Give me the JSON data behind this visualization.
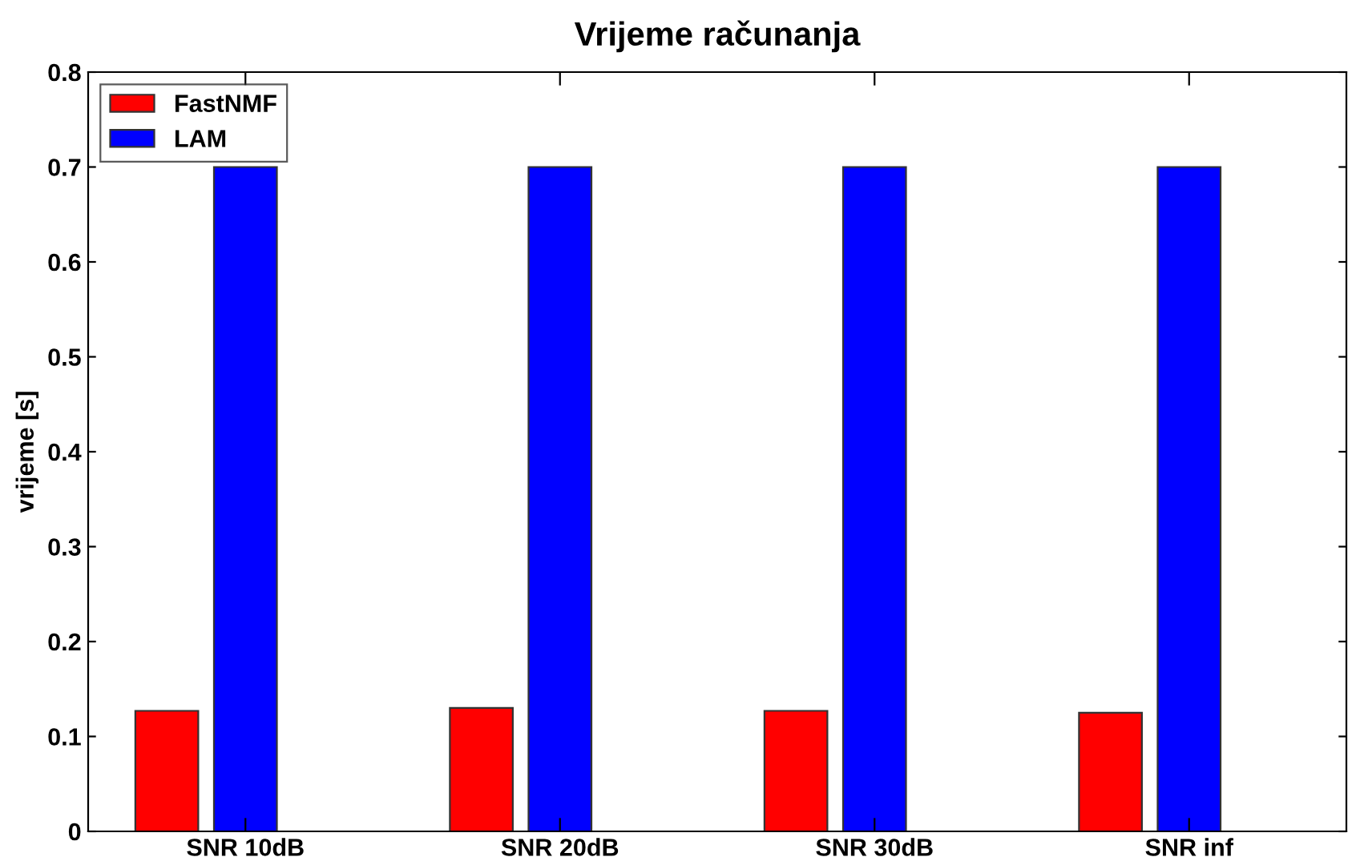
{
  "chart_data": {
    "type": "bar",
    "title": "Vrijeme računanja",
    "ylabel": "vrijeme [s]",
    "categories": [
      "SNR 10dB",
      "SNR 20dB",
      "SNR 30dB",
      "SNR inf"
    ],
    "series": [
      {
        "name": "FastNMF",
        "color": "#ff0000",
        "values": [
          0.127,
          0.13,
          0.127,
          0.125
        ]
      },
      {
        "name": "LAM",
        "color": "#0000ff",
        "values": [
          0.7,
          0.7,
          0.7,
          0.7
        ]
      }
    ],
    "ylim": [
      0,
      0.8
    ],
    "yticks": [
      0,
      0.1,
      0.2,
      0.3,
      0.4,
      0.5,
      0.6,
      0.7,
      0.8
    ],
    "grid": false,
    "legend": "top left"
  }
}
